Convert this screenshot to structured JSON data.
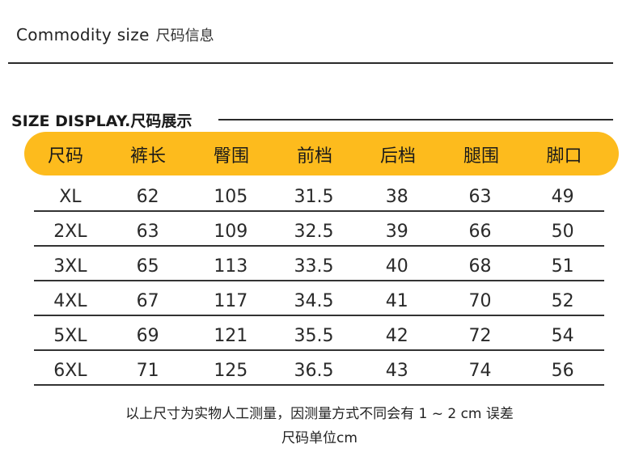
{
  "heading": {
    "title_en": "Commodity size",
    "title_cn": "尺码信息"
  },
  "section": {
    "title": "SIZE DISPLAY.尺码展示"
  },
  "table": {
    "headers": [
      "尺码",
      "裤长",
      "臀围",
      "前档",
      "后档",
      "腿围",
      "脚口"
    ],
    "rows": [
      [
        "XL",
        "62",
        "105",
        "31.5",
        "38",
        "63",
        "49"
      ],
      [
        "2XL",
        "63",
        "109",
        "32.5",
        "39",
        "66",
        "50"
      ],
      [
        "3XL",
        "65",
        "113",
        "33.5",
        "40",
        "68",
        "51"
      ],
      [
        "4XL",
        "67",
        "117",
        "34.5",
        "41",
        "70",
        "52"
      ],
      [
        "5XL",
        "69",
        "121",
        "35.5",
        "42",
        "72",
        "54"
      ],
      [
        "6XL",
        "71",
        "125",
        "36.5",
        "43",
        "74",
        "56"
      ]
    ]
  },
  "notes": {
    "line1": "以上尺寸为实物人工测量，因测量方式不同会有 1 ~ 2 cm 误差",
    "line2": "尺码单位cm"
  },
  "colors": {
    "header_bg": "#fdbb1d",
    "rule": "#2a2a2a"
  }
}
